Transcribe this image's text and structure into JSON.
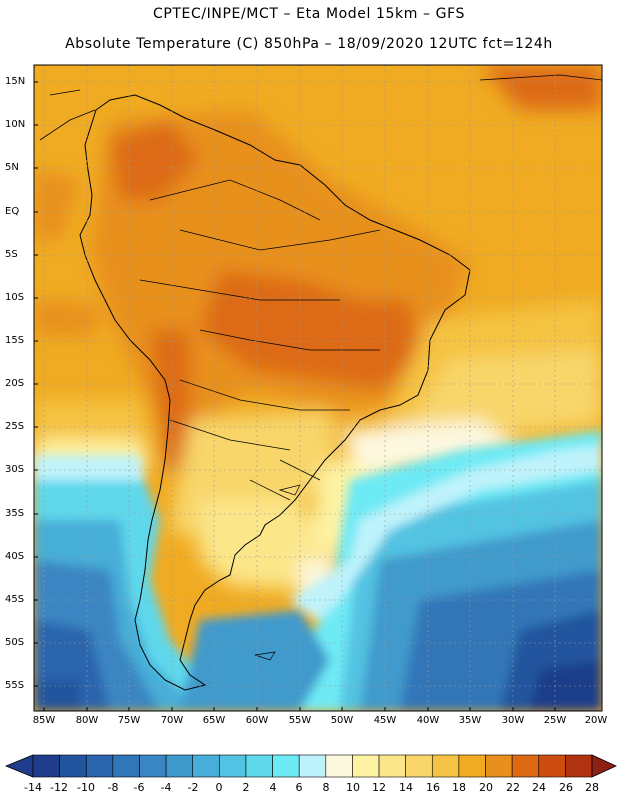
{
  "header": {
    "line1": "CPTEC/INPE/MCT –  Eta Model 15km – GFS",
    "line2": "Absolute Temperature (C) 850hPa – 18/09/2020 12UTC fct=124h"
  },
  "map": {
    "lat_labels": [
      "15N",
      "10N",
      "5N",
      "EQ",
      "5S",
      "10S",
      "15S",
      "20S",
      "25S",
      "30S",
      "35S",
      "40S",
      "45S",
      "50S",
      "55S"
    ],
    "lon_labels": [
      "85W",
      "80W",
      "75W",
      "70W",
      "65W",
      "60W",
      "55W",
      "50W",
      "45W",
      "40W",
      "35W",
      "30W",
      "25W",
      "20W"
    ]
  },
  "colorbar": {
    "labels": [
      "-14",
      "-12",
      "-10",
      "-8",
      "-6",
      "-4",
      "-2",
      "0",
      "2",
      "4",
      "6",
      "8",
      "10",
      "12",
      "14",
      "16",
      "18",
      "20",
      "22",
      "24",
      "26",
      "28"
    ],
    "colors": [
      "#1f3d8a",
      "#23549e",
      "#2a65ad",
      "#3176b8",
      "#3a86c2",
      "#3f9acc",
      "#46aed8",
      "#52c3e2",
      "#5fd8ec",
      "#6eeaf5",
      "#bff3fb",
      "#fdf8e0",
      "#fdf3a3",
      "#fbe68a",
      "#f8d66a",
      "#f5c343",
      "#f0ab22",
      "#e8901d",
      "#dd6a12",
      "#cd4d10",
      "#b03412",
      "#8c2013"
    ]
  }
}
